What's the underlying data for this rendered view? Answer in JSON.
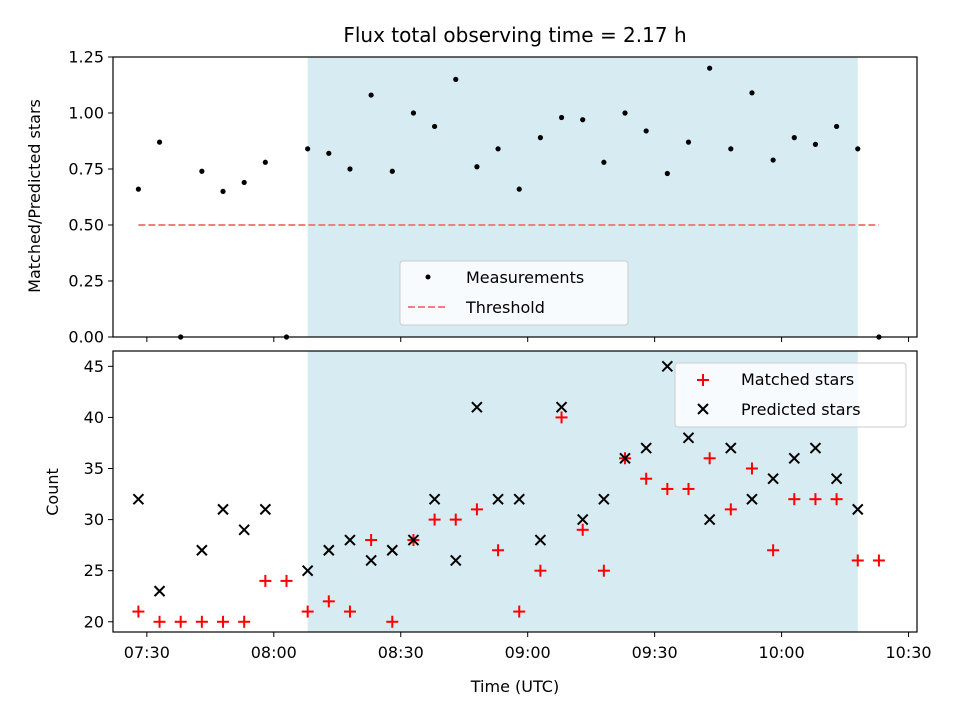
{
  "chart_data": [
    {
      "type": "scatter",
      "title": "Flux total observing time = 2.17 h",
      "ylabel": "Matched/Predicted stars",
      "xlabel": "",
      "xlim": [
        "07:22",
        "10:32"
      ],
      "ylim": [
        0,
        1.25
      ],
      "yticks": [
        0.0,
        0.25,
        0.5,
        0.75,
        1.0,
        1.25
      ],
      "ytick_labels": [
        "0.00",
        "0.25",
        "0.50",
        "0.75",
        "1.00",
        "1.25"
      ],
      "shaded_interval": [
        "08:08",
        "10:18"
      ],
      "legend_placement": "lower-center",
      "series": [
        {
          "name": "Measurements",
          "color": "#000000",
          "marker": "dot",
          "x": [
            "07:28",
            "07:33",
            "07:38",
            "07:43",
            "07:48",
            "07:53",
            "07:58",
            "08:03",
            "08:08",
            "08:13",
            "08:18",
            "08:23",
            "08:28",
            "08:33",
            "08:38",
            "08:43",
            "08:48",
            "08:53",
            "08:58",
            "09:03",
            "09:08",
            "09:13",
            "09:18",
            "09:23",
            "09:28",
            "09:33",
            "09:38",
            "09:43",
            "09:48",
            "09:53",
            "09:58",
            "10:03",
            "10:08",
            "10:13",
            "10:18",
            "10:23"
          ],
          "y": [
            0.66,
            0.87,
            0.0,
            0.74,
            0.65,
            0.69,
            0.78,
            0.0,
            0.84,
            0.82,
            0.75,
            1.08,
            0.74,
            1.0,
            0.94,
            1.15,
            0.76,
            0.84,
            0.66,
            0.89,
            0.98,
            0.97,
            0.78,
            1.0,
            0.92,
            0.73,
            0.87,
            1.2,
            0.84,
            1.09,
            0.79,
            0.89,
            0.86,
            0.94,
            0.84,
            0.0
          ]
        },
        {
          "name": "Threshold",
          "color": "#f08080",
          "style": "dashed",
          "x": [
            "07:28",
            "10:23"
          ],
          "y": [
            0.5,
            0.5
          ]
        }
      ]
    },
    {
      "type": "scatter",
      "title": "",
      "xlabel": "Time (UTC)",
      "ylabel": "Count",
      "xlim": [
        "07:22",
        "10:32"
      ],
      "ylim": [
        19,
        46.5
      ],
      "xticks": [
        "07:30",
        "08:00",
        "08:30",
        "09:00",
        "09:30",
        "10:00",
        "10:30"
      ],
      "yticks": [
        20,
        25,
        30,
        35,
        40,
        45
      ],
      "ytick_labels": [
        "20",
        "25",
        "30",
        "35",
        "40",
        "45"
      ],
      "shaded_interval": [
        "08:08",
        "10:18"
      ],
      "legend_placement": "top-right",
      "series": [
        {
          "name": "Matched stars",
          "color": "#ff0000",
          "marker": "plus",
          "x": [
            "07:28",
            "07:33",
            "07:38",
            "07:43",
            "07:48",
            "07:53",
            "07:58",
            "08:03",
            "08:08",
            "08:13",
            "08:18",
            "08:23",
            "08:28",
            "08:33",
            "08:38",
            "08:43",
            "08:48",
            "08:53",
            "08:58",
            "09:03",
            "09:08",
            "09:13",
            "09:18",
            "09:23",
            "09:28",
            "09:33",
            "09:38",
            "09:43",
            "09:48",
            "09:53",
            "09:58",
            "10:03",
            "10:08",
            "10:13",
            "10:18",
            "10:23"
          ],
          "y": [
            21,
            20,
            20,
            20,
            20,
            20,
            24,
            24,
            21,
            22,
            21,
            28,
            20,
            28,
            30,
            30,
            31,
            27,
            21,
            25,
            40,
            29,
            25,
            36,
            34,
            33,
            33,
            36,
            31,
            35,
            27,
            32,
            32,
            32,
            26,
            26
          ]
        },
        {
          "name": "Predicted stars",
          "color": "#000000",
          "marker": "x",
          "x": [
            "07:28",
            "07:33",
            "07:43",
            "07:48",
            "07:53",
            "07:58",
            "08:08",
            "08:13",
            "08:18",
            "08:23",
            "08:28",
            "08:33",
            "08:38",
            "08:43",
            "08:48",
            "08:53",
            "08:58",
            "09:03",
            "09:08",
            "09:13",
            "09:18",
            "09:23",
            "09:28",
            "09:33",
            "09:38",
            "09:43",
            "09:48",
            "09:53",
            "09:58",
            "10:03",
            "10:08",
            "10:13",
            "10:18"
          ],
          "y": [
            32,
            23,
            27,
            31,
            29,
            31,
            25,
            27,
            28,
            26,
            27,
            28,
            32,
            26,
            41,
            32,
            32,
            28,
            41,
            30,
            32,
            36,
            37,
            45,
            38,
            30,
            37,
            32,
            34,
            36,
            37,
            34,
            31
          ]
        }
      ]
    }
  ]
}
